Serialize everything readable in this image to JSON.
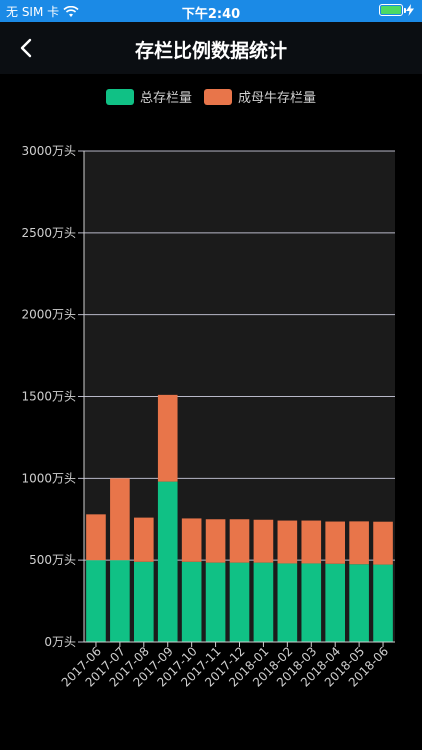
{
  "status": {
    "carrier": "无 SIM 卡",
    "time": "下午2:40"
  },
  "nav": {
    "title": "存栏比例数据统计"
  },
  "colors": {
    "total": "#10c185",
    "sow": "#e8754a",
    "background": "#000000",
    "plot_bg": "#1b1b1b"
  },
  "chart_data": {
    "type": "bar",
    "stacked": true,
    "categories": [
      "2017-06",
      "2017-07",
      "2017-08",
      "2017-09",
      "2017-10",
      "2017-11",
      "2017-12",
      "2018-01",
      "2018-02",
      "2018-03",
      "2018-04",
      "2018-05",
      "2018-06"
    ],
    "series": [
      {
        "name": "总存栏量",
        "values": [
          500,
          500,
          490,
          980,
          490,
          485,
          485,
          485,
          480,
          480,
          478,
          475,
          473
        ]
      },
      {
        "name": "成母牛存栏量",
        "values": [
          280,
          500,
          270,
          530,
          265,
          265,
          265,
          262,
          262,
          262,
          258,
          262,
          262
        ]
      }
    ],
    "y_ticks": [
      "0万头",
      "500万头",
      "1000万头",
      "1500万头",
      "2000万头",
      "2500万头",
      "3000万头"
    ],
    "ylim": [
      0,
      3000
    ],
    "grid": true,
    "legend": "top"
  }
}
